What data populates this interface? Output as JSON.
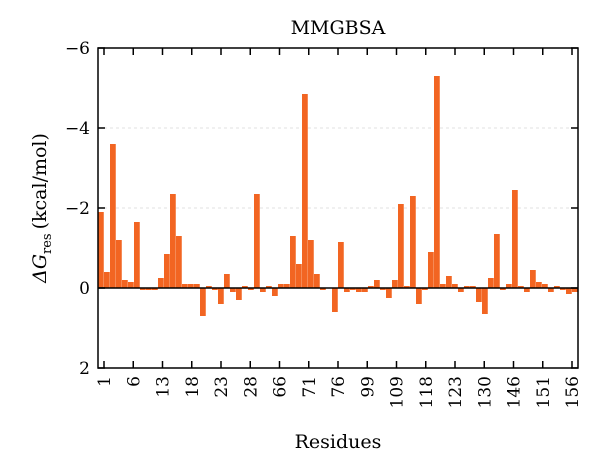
{
  "chart_data": {
    "type": "bar",
    "title": "MMGBSA",
    "xlabel": "Residues",
    "ylabel_main": "ΔG",
    "ylabel_sub": "res",
    "ylabel_units": "(kcal/mol)",
    "ylim": [
      2,
      -6
    ],
    "y_axis_inverted": true,
    "yticks": [
      2,
      0,
      -2,
      -4,
      -6
    ],
    "ytick_labels": [
      "2",
      "0",
      "−2",
      "−4",
      "−6"
    ],
    "xtick_labels": [
      "1",
      "6",
      "13",
      "18",
      "23",
      "28",
      "66",
      "71",
      "76",
      "99",
      "109",
      "118",
      "123",
      "130",
      "146",
      "151",
      "156"
    ],
    "bar_color": "#f26522",
    "grid": "horizontal dashed",
    "values": [
      -1.9,
      -0.4,
      -3.6,
      -1.2,
      -0.2,
      -0.15,
      -1.65,
      0.05,
      0.05,
      0.05,
      -0.25,
      -0.85,
      -2.35,
      -1.3,
      -0.1,
      -0.1,
      -0.1,
      0.7,
      -0.05,
      0.05,
      0.4,
      -0.35,
      0.1,
      0.3,
      -0.05,
      0.05,
      -2.35,
      0.1,
      -0.05,
      0.2,
      -0.1,
      -0.1,
      -1.3,
      -0.6,
      -4.85,
      -1.2,
      -0.35,
      0.05,
      0.0,
      0.6,
      -1.15,
      0.1,
      0.05,
      0.1,
      0.1,
      -0.05,
      -0.2,
      0.05,
      0.25,
      -0.2,
      -2.1,
      -0.05,
      -2.3,
      0.4,
      0.05,
      -0.9,
      -5.3,
      -0.1,
      -0.3,
      -0.1,
      0.1,
      -0.05,
      -0.05,
      0.35,
      0.65,
      -0.25,
      -1.35,
      0.05,
      -0.1,
      -2.45,
      -0.05,
      0.1,
      -0.45,
      -0.15,
      -0.1,
      0.1,
      -0.05,
      0.05,
      0.15,
      0.1
    ]
  }
}
